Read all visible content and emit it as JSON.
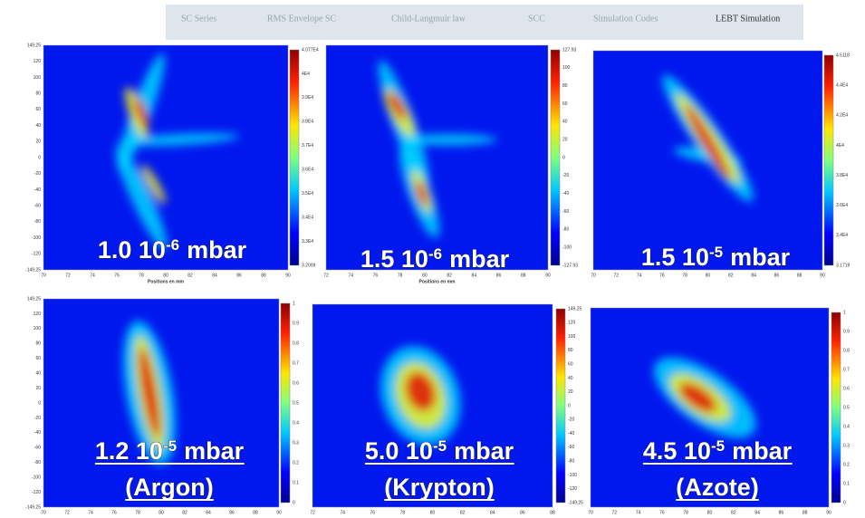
{
  "nav": [
    "SC Series",
    "RMS Envelope SC",
    "Child-Langmuir law",
    "SCC",
    "Simulation Codes",
    "LEBT Simulation"
  ],
  "panels": [
    {
      "label": {
        "main": "1.0 10",
        "sup": "-6",
        "unit": "mbar"
      },
      "colorbar": [
        "4.077E4",
        "4E4",
        "3.9E4",
        "3.8E4",
        "3.7E4",
        "3.6E4",
        "3.5E4",
        "3.4E4",
        "3.3E4",
        "3.2009"
      ],
      "yticks": [
        "149.25",
        "120",
        "100",
        "80",
        "60",
        "40",
        "20",
        "0",
        "-20",
        "-40",
        "-60",
        "-80",
        "-100",
        "-120",
        "-149.25"
      ],
      "xticks": [
        "70",
        "72",
        "74",
        "76",
        "78",
        "80",
        "82",
        "84",
        "86",
        "88",
        "90"
      ],
      "xlabel": "Positions en mm"
    },
    {
      "label": {
        "main": "1.5 10",
        "sup": "-6",
        "unit": "mbar"
      },
      "colorbar": [
        "127.93",
        "100",
        "80",
        "60",
        "40",
        "20",
        "0",
        "-20",
        "-40",
        "-60",
        "-80",
        "-100",
        "-127.93"
      ],
      "xticks": [
        "72",
        "74",
        "76",
        "78",
        "80",
        "82",
        "84",
        "86",
        "88",
        "90"
      ],
      "xlabel": "Positions en mm"
    },
    {
      "label": {
        "main": "1.5 10",
        "sup": "-5",
        "unit": "mbar"
      },
      "colorbar": [
        "4.5118",
        "4.4E4",
        "4.2E4",
        "4E4",
        "3.8E4",
        "3.6E4",
        "3.4E4",
        "3.1719"
      ],
      "xticks": [
        "70",
        "72",
        "74",
        "76",
        "78",
        "80",
        "82",
        "84",
        "86",
        "88",
        "90"
      ]
    },
    {
      "label": {
        "main": "1.2 10",
        "sup": "-5",
        "unit": "mbar"
      },
      "gas": "(Argon)",
      "colorbar": [
        "1",
        "0.9",
        "0.8",
        "0.7",
        "0.6",
        "0.5",
        "0.4",
        "0.3",
        "0.2",
        "0.1",
        "0"
      ],
      "yticks": [
        "149.25",
        "120",
        "100",
        "80",
        "60",
        "40",
        "20",
        "0",
        "-20",
        "-40",
        "-60",
        "-80",
        "-100",
        "-120",
        "-149.25"
      ],
      "xticks": [
        "70",
        "72",
        "74",
        "76",
        "78",
        "80",
        "82",
        "84",
        "86",
        "88",
        "90"
      ]
    },
    {
      "label": {
        "main": "5.0 10",
        "sup": "-5",
        "unit": "mbar"
      },
      "gas": "(Krypton)",
      "colorbar": [
        "149.25",
        "120",
        "100",
        "80",
        "60",
        "40",
        "20",
        "0",
        "-20",
        "-40",
        "-60",
        "-80",
        "-100",
        "-120",
        "-149.25"
      ],
      "xticks": [
        "72",
        "74",
        "76",
        "78",
        "80",
        "82",
        "84",
        "86",
        "88"
      ]
    },
    {
      "label": {
        "main": "4.5 10",
        "sup": "-5",
        "unit": "mbar"
      },
      "gas": "(Azote)",
      "colorbar": [
        "1",
        "0.9",
        "0.8",
        "0.7",
        "0.6",
        "0.5",
        "0.4",
        "0.3",
        "0.2",
        "0.1",
        "0"
      ],
      "xticks": [
        "70",
        "72",
        "74",
        "76",
        "78",
        "80",
        "82",
        "84",
        "86",
        "88",
        "90"
      ]
    }
  ]
}
